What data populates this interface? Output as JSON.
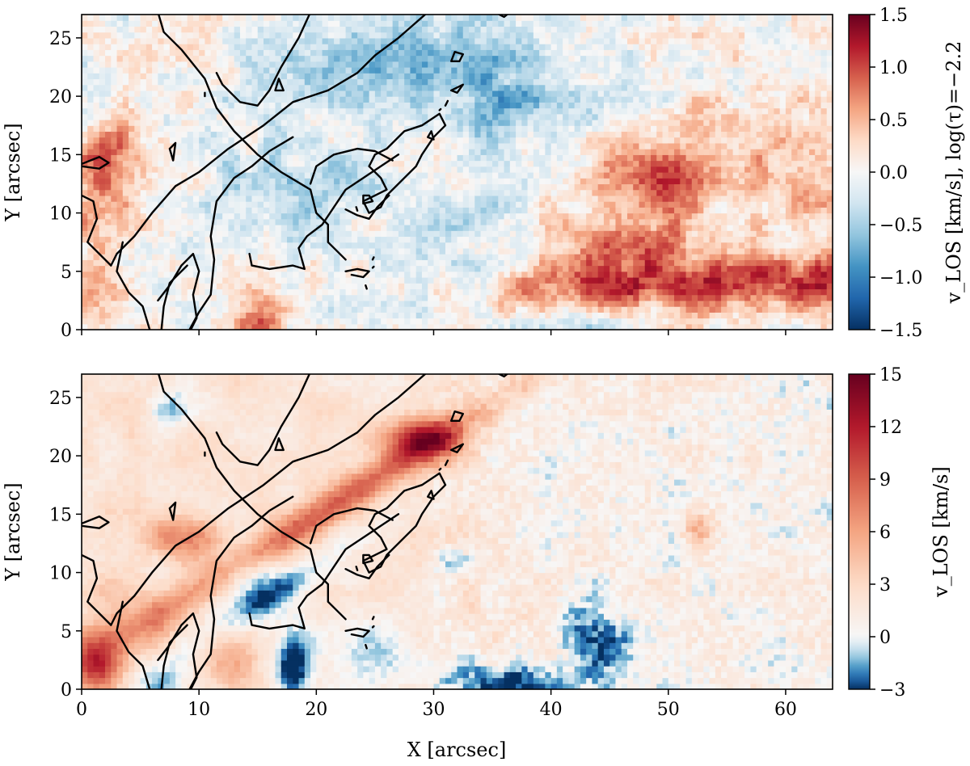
{
  "chart_data": [
    {
      "type": "heatmap",
      "panel": "top",
      "xlabel": "",
      "ylabel": "Y [arcsec]",
      "colorbar_label": "v_LOS [km/s], log(τ)=−2.2",
      "xlim": [
        0,
        64
      ],
      "ylim": [
        0,
        27
      ],
      "x_ticks": [
        0,
        10,
        20,
        30,
        40,
        50,
        60
      ],
      "x_tick_labels_visible": false,
      "y_ticks": [
        0,
        5,
        10,
        15,
        20,
        25
      ],
      "y_tick_labels": [
        "0",
        "5",
        "10",
        "15",
        "20",
        "25"
      ],
      "clim": [
        -1.5,
        1.5
      ],
      "colorbar_ticks": [
        1.5,
        1.0,
        0.5,
        0.0,
        -0.5,
        -1.0,
        -1.5
      ],
      "colorbar_tick_labels": [
        "1.5",
        "1.0",
        "0.5",
        "0.0",
        "−0.5",
        "−1.0",
        "−1.5"
      ],
      "colormap": "RdBu_r",
      "cmap_colors": [
        "#053061",
        "#2166ac",
        "#4393c3",
        "#92c5de",
        "#d1e5f0",
        "#f7f7f7",
        "#fddbc7",
        "#f4a582",
        "#d6604d",
        "#b2182b",
        "#67001f"
      ],
      "contours": "black lines, shared across both panels"
    },
    {
      "type": "heatmap",
      "panel": "bottom",
      "xlabel": "X [arcsec]",
      "ylabel": "Y [arcsec]",
      "colorbar_label": "v_LOS [km/s]",
      "xlim": [
        0,
        64
      ],
      "ylim": [
        0,
        27
      ],
      "x_ticks": [
        0,
        10,
        20,
        30,
        40,
        50,
        60
      ],
      "x_tick_labels": [
        "0",
        "10",
        "20",
        "30",
        "40",
        "50",
        "60"
      ],
      "y_ticks": [
        0,
        5,
        10,
        15,
        20,
        25
      ],
      "y_tick_labels": [
        "0",
        "5",
        "10",
        "15",
        "20",
        "25"
      ],
      "clim": [
        -3,
        15
      ],
      "colorbar_ticks": [
        15,
        12,
        9,
        6,
        3,
        0,
        -3
      ],
      "colorbar_tick_labels": [
        "15",
        "12",
        "9",
        "6",
        "3",
        "0",
        "−3"
      ],
      "colormap": "diverging blue–white–red centered at 0",
      "cmap_colors": [
        "#053061",
        "#2166ac",
        "#4393c3",
        "#92c5de",
        "#d1e5f0",
        "#f7f7f7",
        "#fddbc7",
        "#f4a582",
        "#d6604d",
        "#b2182b",
        "#67001f"
      ]
    }
  ]
}
